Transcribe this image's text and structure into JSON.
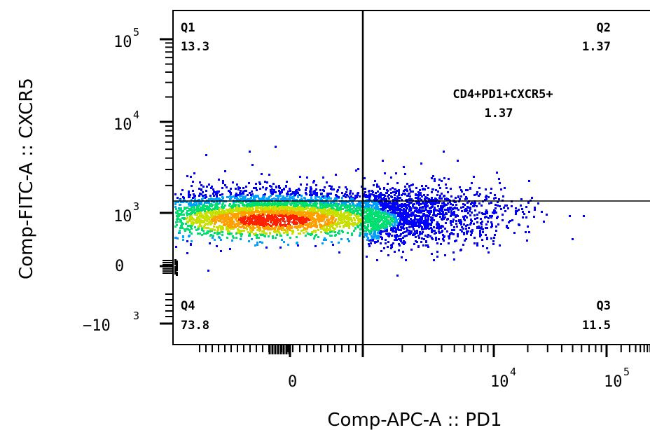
{
  "chart_data": {
    "type": "scatter",
    "title": "",
    "xlabel": "Comp-APC-A :: PD1",
    "ylabel": "Comp-FITC-A :: CXCR5",
    "x_scale": "biexponential",
    "y_scale": "biexponential",
    "x_ticks": [
      {
        "value": "0",
        "base": "0",
        "exp": ""
      },
      {
        "value": "10^4",
        "base": "10",
        "exp": "4"
      },
      {
        "value": "10^5",
        "base": "10",
        "exp": "5"
      }
    ],
    "y_ticks": [
      {
        "value": "10^5",
        "base": "10",
        "exp": "5"
      },
      {
        "value": "10^4",
        "base": "10",
        "exp": "4"
      },
      {
        "value": "10^3",
        "base": "10",
        "exp": "3"
      },
      {
        "value": "0",
        "base": "0",
        "exp": ""
      },
      {
        "value": "-10^3",
        "base": "−10",
        "exp": "3"
      }
    ],
    "gate": {
      "name": "CD4+PD1+CXCR5+",
      "value": "1.37"
    },
    "quadrants": [
      {
        "id": "Q1",
        "label": "Q1",
        "percent": "13.3",
        "position": "top-left"
      },
      {
        "id": "Q2",
        "label": "Q2",
        "percent": "1.37",
        "position": "top-right"
      },
      {
        "id": "Q3",
        "label": "Q3",
        "percent": "11.5",
        "position": "bottom-right"
      },
      {
        "id": "Q4",
        "label": "Q4",
        "percent": "73.8",
        "position": "bottom-left"
      }
    ],
    "density_colors": [
      "#0000ff",
      "#00a0ff",
      "#00e070",
      "#c8e000",
      "#ffa000",
      "#ff2000"
    ],
    "grid": false
  },
  "labels": {
    "gate_name": "CD4+PD1+CXCR5+",
    "gate_value": "1.37",
    "q1_name": "Q1",
    "q1_value": "13.3",
    "q2_name": "Q2",
    "q2_value": "1.37",
    "q3_name": "Q3",
    "q3_value": "11.5",
    "q4_name": "Q4",
    "q4_value": "73.8",
    "xlabel": "Comp-APC-A :: PD1",
    "ylabel": "Comp-FITC-A :: CXCR5"
  }
}
